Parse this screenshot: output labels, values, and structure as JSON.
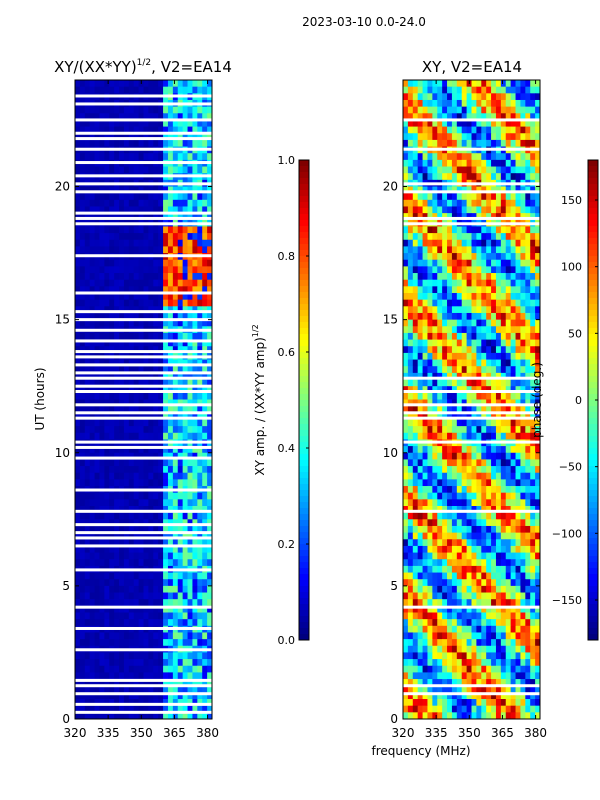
{
  "suptitle": "2023-03-10 0.0-24.0",
  "colors": {
    "white": "#ffffff",
    "black": "#000000",
    "grid": "#ffffff",
    "jet": [
      "#00007f",
      "#0000ff",
      "#007fff",
      "#00ffff",
      "#7fff7f",
      "#ffff00",
      "#ff7f00",
      "#ff0000",
      "#7f0000"
    ]
  },
  "chart_data": [
    {
      "type": "heatmap",
      "title": "XY/(XX*YY)",
      "title_sup": "1/2",
      "title_suffix": ", V2=EA14",
      "xlabel": "",
      "ylabel": "UT (hours)",
      "xlim": [
        320,
        382
      ],
      "ylim": [
        0,
        24
      ],
      "xticks": [
        320,
        335,
        350,
        365,
        380
      ],
      "xtick_labels": [
        "320",
        "335",
        "350",
        "365",
        "380"
      ],
      "yticks": [
        0,
        5,
        10,
        15,
        20
      ],
      "ytick_labels": [
        "0",
        "5",
        "10",
        "15",
        "20"
      ],
      "colorbar": {
        "label": "XY amp. / (XX*YY amp)",
        "label_sup": "1/2",
        "range": [
          0.0,
          1.0
        ],
        "ticks": [
          0.0,
          0.2,
          0.4,
          0.6,
          0.8,
          1.0
        ],
        "tick_labels": [
          "0.0",
          "0.2",
          "0.4",
          "0.6",
          "0.8",
          "1.0"
        ],
        "cmap": "jet"
      },
      "pattern": {
        "background_value": 0.05,
        "active_band_mhz": [
          359,
          381
        ],
        "active_band_value_range": [
          0.2,
          0.5
        ],
        "high_band_hours": [
          15.5,
          18.5
        ],
        "high_band_value_range": [
          0.7,
          0.95
        ],
        "flagged_hours": [
          0.25,
          0.55,
          0.95,
          1.25,
          1.45,
          2.6,
          3.4,
          4.2,
          5.6,
          6.5,
          6.8,
          7.0,
          7.3,
          7.8,
          8.6,
          9.8,
          10.2,
          10.4,
          11.3,
          11.5,
          11.8,
          12.3,
          12.5,
          12.8,
          13.0,
          13.3,
          13.6,
          13.8,
          14.2,
          14.6,
          15.0,
          15.3,
          16.0,
          17.4,
          18.6,
          18.8,
          19.0,
          19.8,
          20.1,
          20.4,
          20.9,
          21.4,
          21.8,
          22.0,
          22.5,
          23.1,
          23.4
        ]
      }
    },
    {
      "type": "heatmap",
      "title": "XY, V2=EA14",
      "xlabel": "frequency (MHz)",
      "ylabel": "",
      "xlim": [
        320,
        382
      ],
      "ylim": [
        0,
        24
      ],
      "xticks": [
        320,
        335,
        350,
        365,
        380
      ],
      "xtick_labels": [
        "320",
        "335",
        "350",
        "365",
        "380"
      ],
      "yticks": [
        0,
        5,
        10,
        15,
        20
      ],
      "ytick_labels": [
        "0",
        "5",
        "10",
        "15",
        "20"
      ],
      "colorbar": {
        "label": "phase (deg.)",
        "range": [
          -180,
          180
        ],
        "ticks": [
          -150,
          -100,
          -50,
          0,
          50,
          100,
          150
        ],
        "tick_labels": [
          "−150",
          "−100",
          "−50",
          "0",
          "50",
          "100",
          "150"
        ],
        "cmap": "jet"
      },
      "pattern": {
        "value_range": [
          -180,
          180
        ],
        "flagged_hours": [
          0.95,
          1.25,
          4.2,
          7.8,
          10.4,
          11.3,
          11.5,
          11.8,
          12.3,
          12.8,
          18.6,
          18.8,
          19.8,
          20.1,
          21.4,
          22.5
        ]
      }
    }
  ]
}
